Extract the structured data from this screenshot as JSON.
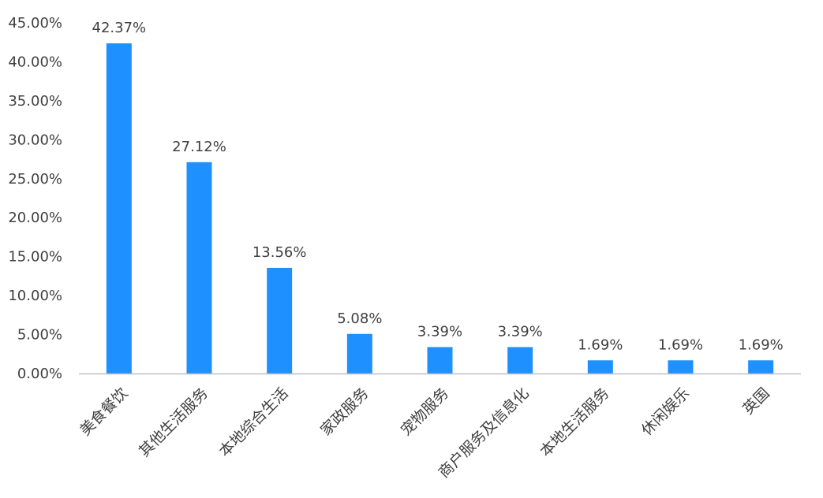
{
  "chart_data": {
    "type": "bar",
    "title": "",
    "xlabel": "",
    "ylabel": "",
    "categories": [
      "美食餐饮",
      "其他生活服务",
      "本地综合生活",
      "家政服务",
      "宠物服务",
      "商户服务及信息化",
      "本地生活服务",
      "休闲娱乐",
      "英国"
    ],
    "values": [
      42.37,
      27.12,
      13.56,
      5.08,
      3.39,
      3.39,
      1.69,
      1.69,
      1.69
    ],
    "data_labels": [
      "42.37%",
      "27.12%",
      "13.56%",
      "5.08%",
      "3.39%",
      "3.39%",
      "1.69%",
      "1.69%",
      "1.69%"
    ],
    "ylim": [
      0,
      45
    ],
    "yticks": [
      0,
      5,
      10,
      15,
      20,
      25,
      30,
      35,
      40,
      45
    ],
    "ytick_labels": [
      "0.00%",
      "5.00%",
      "10.00%",
      "15.00%",
      "20.00%",
      "25.00%",
      "30.00%",
      "35.00%",
      "40.00%",
      "45.00%"
    ],
    "grid": false,
    "legend": "none",
    "bar_color": "#1E90FF",
    "axis_color": "#BFBFBF",
    "text_color": "#404040"
  }
}
